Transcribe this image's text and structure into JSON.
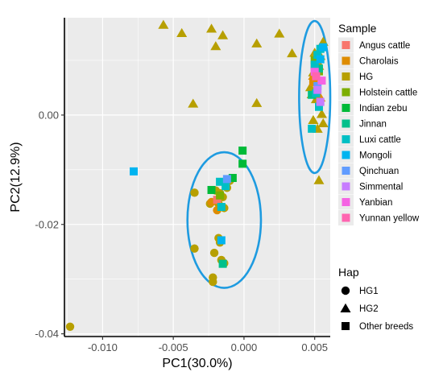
{
  "chart_data": {
    "type": "scatter",
    "xlabel": "PC1(30.0%)",
    "ylabel": "PC2(12.9%)",
    "xlim": [
      -0.0127,
      0.0061
    ],
    "ylim": [
      -0.0405,
      0.0178
    ],
    "x_ticks": [
      -0.01,
      -0.005,
      0.0,
      0.005
    ],
    "x_tick_labels": [
      "-0.010",
      "-0.005",
      "0.000",
      "0.005"
    ],
    "y_ticks": [
      -0.04,
      -0.02,
      0.0
    ],
    "y_tick_labels": [
      "-0.04",
      "-0.02",
      "0.00"
    ],
    "grid": true,
    "legend": {
      "placement": "right",
      "sample_title": "Sample",
      "samples": [
        {
          "name": "Angus cattle",
          "color": "#F8766D"
        },
        {
          "name": "Charolais",
          "color": "#DE8C00"
        },
        {
          "name": "HG",
          "color": "#B79F00"
        },
        {
          "name": "Holstein cattle",
          "color": "#7CAE00"
        },
        {
          "name": "Indian zebu",
          "color": "#00BA38"
        },
        {
          "name": "Jinnan",
          "color": "#00C08B"
        },
        {
          "name": "Luxi cattle",
          "color": "#00BFC4"
        },
        {
          "name": "Mongoli",
          "color": "#00B4F0"
        },
        {
          "name": "Qinchuan",
          "color": "#619CFF"
        },
        {
          "name": "Simmental",
          "color": "#C77CFF"
        },
        {
          "name": "Yanbian",
          "color": "#F564E3"
        },
        {
          "name": "Yunnan yellow",
          "color": "#FF64B0"
        }
      ],
      "hap_title": "Hap",
      "haps": [
        {
          "name": "HG1",
          "shape": "circle"
        },
        {
          "name": "HG2",
          "shape": "triangle"
        },
        {
          "name": "Other breeds",
          "shape": "square"
        }
      ]
    },
    "ellipses": [
      {
        "cx": -0.0014,
        "cy": -0.0192,
        "rx": 0.0026,
        "ry": 0.0124,
        "color": "#1E9BE0"
      },
      {
        "cx": 0.005,
        "cy": 0.0033,
        "rx": 0.0011,
        "ry": 0.0139,
        "color": "#1E9BE0"
      }
    ],
    "series": [
      {
        "name": "HG",
        "color": "#B79F00",
        "shape": "circle",
        "points": [
          [
            -0.0123,
            -0.0387
          ],
          [
            -0.0035,
            -0.0142
          ],
          [
            -0.0035,
            -0.0244
          ],
          [
            -0.0022,
            -0.0297
          ],
          [
            -0.0022,
            -0.0305
          ],
          [
            -0.0021,
            -0.0252
          ],
          [
            -0.0017,
            -0.0233
          ],
          [
            -0.0018,
            -0.0225
          ],
          [
            -0.0016,
            -0.0265
          ],
          [
            -0.0014,
            -0.0271
          ],
          [
            -0.0018,
            -0.0162
          ],
          [
            -0.0016,
            -0.0168
          ],
          [
            -0.0014,
            -0.017
          ],
          [
            -0.0017,
            -0.0143
          ],
          [
            -0.002,
            -0.0138
          ],
          [
            -0.0015,
            -0.015
          ],
          [
            -0.0012,
            -0.0133
          ],
          [
            -0.001,
            -0.012
          ],
          [
            -0.0024,
            -0.0162
          ]
        ]
      },
      {
        "name": "HG",
        "color": "#B79F00",
        "shape": "triangle",
        "points": [
          [
            -0.0057,
            0.0165
          ],
          [
            -0.0044,
            0.015
          ],
          [
            -0.0023,
            0.0158
          ],
          [
            -0.0015,
            0.0146
          ],
          [
            -0.002,
            0.0126
          ],
          [
            0.0009,
            0.0131
          ],
          [
            0.0025,
            0.0149
          ],
          [
            0.0034,
            0.0113
          ],
          [
            -0.0036,
            0.0021
          ],
          [
            0.0009,
            0.0022
          ],
          [
            0.0053,
            -0.0119
          ],
          [
            0.0056,
            0.0134
          ],
          [
            0.0052,
            0.0098
          ],
          [
            0.0049,
            0.0078
          ],
          [
            0.0047,
            0.0051
          ],
          [
            0.0051,
            0.0029
          ],
          [
            0.0055,
            0.0002
          ],
          [
            0.0049,
            -0.0009
          ],
          [
            0.0056,
            -0.0015
          ],
          [
            0.005,
            0.0066
          ],
          [
            0.0054,
            0.0108
          ],
          [
            0.0048,
            0.0038
          ],
          [
            0.0052,
            -0.0025
          ],
          [
            0.005,
            0.0114
          ]
        ]
      },
      {
        "name": "Charolais",
        "color": "#DE8C00",
        "shape": "circle",
        "points": [
          [
            -0.0023,
            -0.0159
          ],
          [
            -0.0019,
            -0.0174
          ]
        ]
      },
      {
        "name": "Charolais",
        "color": "#DE8C00",
        "shape": "triangle",
        "points": [
          [
            0.0049,
            0.0072
          ],
          [
            0.0053,
            0.009
          ],
          [
            0.0051,
            0.0045
          ],
          [
            0.0054,
            0.0032
          ]
        ]
      },
      {
        "name": "Angus cattle",
        "color": "#F8766D",
        "shape": "square",
        "points": [
          [
            -0.0019,
            -0.0155
          ],
          [
            0.005,
            0.0085
          ],
          [
            0.0052,
            0.0062
          ]
        ]
      },
      {
        "name": "Charolais",
        "color": "#DE8C00",
        "shape": "square",
        "points": [
          [
            0.0051,
            0.007
          ],
          [
            0.0049,
            0.006
          ]
        ]
      },
      {
        "name": "Holstein cattle",
        "color": "#7CAE00",
        "shape": "square",
        "points": [
          [
            0.005,
            0.01
          ],
          [
            0.0053,
            0.008
          ],
          [
            -0.0017,
            -0.0147
          ]
        ]
      },
      {
        "name": "Indian zebu",
        "color": "#00BA38",
        "shape": "square",
        "points": [
          [
            -0.0001,
            -0.0065
          ],
          [
            -0.0001,
            -0.0089
          ],
          [
            -0.0023,
            -0.0137
          ],
          [
            -0.0008,
            -0.0115
          ]
        ]
      },
      {
        "name": "Jinnan",
        "color": "#00C08B",
        "shape": "square",
        "points": [
          [
            -0.0015,
            -0.0272
          ],
          [
            0.0053,
            0.0085
          ],
          [
            0.0048,
            0.0037
          ]
        ]
      },
      {
        "name": "Luxi cattle",
        "color": "#00BFC4",
        "shape": "square",
        "points": [
          [
            -0.0017,
            -0.0122
          ],
          [
            -0.0013,
            -0.013
          ],
          [
            -0.0016,
            -0.0168
          ],
          [
            0.0048,
            -0.0025
          ],
          [
            0.0054,
            0.0121
          ],
          [
            0.0052,
            0.011
          ],
          [
            0.005,
            0.0092
          ],
          [
            0.0051,
            0.004
          ],
          [
            0.0053,
            0.0015
          ]
        ]
      },
      {
        "name": "Mongoli",
        "color": "#00B4F0",
        "shape": "square",
        "points": [
          [
            -0.0078,
            -0.0103
          ],
          [
            -0.0016,
            -0.0229
          ],
          [
            0.0056,
            0.0124
          ],
          [
            0.0054,
            0.0102
          ]
        ]
      },
      {
        "name": "Qinchuan",
        "color": "#619CFF",
        "shape": "square",
        "points": [
          [
            -0.0012,
            -0.0117
          ],
          [
            0.0052,
            0.0053
          ]
        ]
      },
      {
        "name": "Simmental",
        "color": "#C77CFF",
        "shape": "square",
        "points": [
          [
            0.0054,
            0.0024
          ],
          [
            0.0052,
            0.0046
          ]
        ]
      },
      {
        "name": "Yanbian",
        "color": "#F564E3",
        "shape": "square",
        "points": [
          [
            0.0055,
            0.0063
          ],
          [
            0.005,
            0.0079
          ]
        ]
      },
      {
        "name": "Yunnan yellow",
        "color": "#FF64B0",
        "shape": "square",
        "points": [
          [
            0.0051,
            0.0071
          ]
        ]
      }
    ]
  }
}
